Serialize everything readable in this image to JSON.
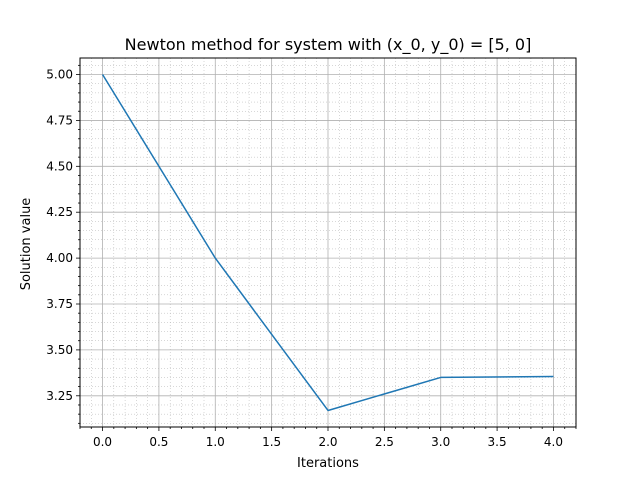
{
  "chart_data": {
    "type": "line",
    "title": "Newton method for system with (x_0, y_0) = [5, 0]",
    "xlabel": "Iterations",
    "ylabel": "Solution value",
    "xlim": [
      -0.2,
      4.2
    ],
    "ylim": [
      3.08,
      5.09
    ],
    "x_ticks": [
      "0.0",
      "0.5",
      "1.0",
      "1.5",
      "2.0",
      "2.5",
      "3.0",
      "3.5",
      "4.0"
    ],
    "y_ticks": [
      "3.25",
      "3.50",
      "3.75",
      "4.00",
      "4.25",
      "4.50",
      "4.75",
      "5.00"
    ],
    "grid": true,
    "minor_grid": true,
    "series": [
      {
        "color": "#1f77b4",
        "x": [
          0,
          1,
          2,
          3,
          4
        ],
        "values": [
          5.0,
          4.0,
          3.17,
          3.35,
          3.355
        ]
      }
    ]
  }
}
